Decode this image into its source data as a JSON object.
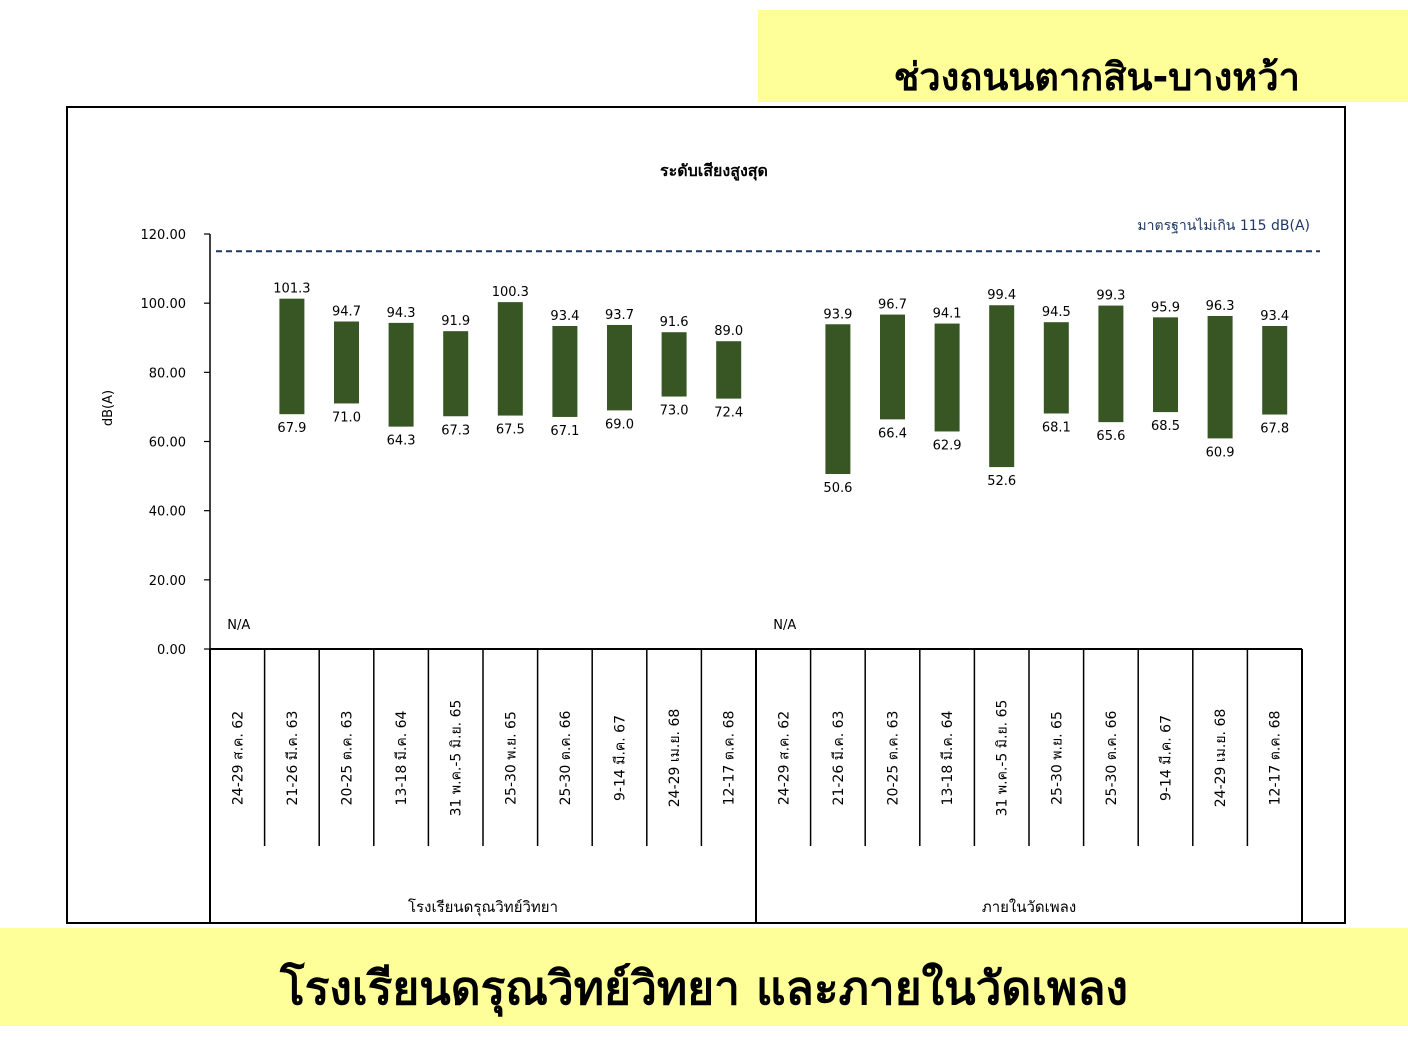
{
  "header": {
    "title": "ช่วงถนนตากสิน-บางหว้า"
  },
  "footer": {
    "title": "โรงเรียนดรุณวิทย์วิทยา และภายในวัดเพลง"
  },
  "colors": {
    "bar": "#375623",
    "banner": "#ffff99",
    "standard_line": "#1f3864"
  },
  "chart_data": {
    "type": "bar",
    "subtype": "floating-range",
    "title": "ระดับเสียงสูงสุด",
    "ylabel": "dB(A)",
    "ylim": [
      0,
      120
    ],
    "yticks": [
      "0.00",
      "20.00",
      "40.00",
      "60.00",
      "80.00",
      "100.00",
      "120.00"
    ],
    "grid": false,
    "standard_line": {
      "value": 115,
      "label": "มาตรฐานไม่เกิน 115 dB(A)"
    },
    "na_label": "N/A",
    "groups": [
      {
        "name": "โรงเรียนดรุณวิทย์วิทยา",
        "categories": [
          "24-29 ส.ค. 62",
          "21-26 มี.ค. 63",
          "20-25 ต.ค. 63",
          "13-18 มี.ค. 64",
          "31 พ.ค.-5 มิ.ย. 65",
          "25-30 พ.ย. 65",
          "25-30 ต.ค. 66",
          "9-14 มี.ค. 67",
          "24-29 เม.ย. 68",
          "12-17 ต.ค. 68"
        ],
        "max": [
          null,
          101.3,
          94.7,
          94.3,
          91.9,
          100.3,
          93.4,
          93.7,
          91.6,
          89.0
        ],
        "min": [
          null,
          67.9,
          71.0,
          64.3,
          67.3,
          67.5,
          67.1,
          69.0,
          73.0,
          72.4
        ]
      },
      {
        "name": "ภายในวัดเพลง",
        "categories": [
          "24-29 ส.ค. 62",
          "21-26 มี.ค. 63",
          "20-25 ต.ค. 63",
          "13-18 มี.ค. 64",
          "31 พ.ค.-5 มิ.ย. 65",
          "25-30 พ.ย. 65",
          "25-30 ต.ค. 66",
          "9-14 มี.ค. 67",
          "24-29 เม.ย. 68",
          "12-17 ต.ค. 68"
        ],
        "max": [
          null,
          93.9,
          96.7,
          94.1,
          99.4,
          94.5,
          99.3,
          95.9,
          96.3,
          93.4
        ],
        "min": [
          null,
          50.6,
          66.4,
          62.9,
          52.6,
          68.1,
          65.6,
          68.5,
          60.9,
          67.8
        ]
      }
    ]
  }
}
